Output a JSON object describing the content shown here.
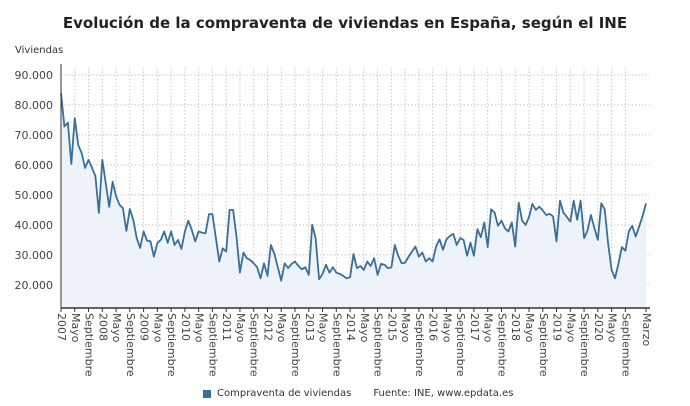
{
  "chart_data": {
    "type": "area",
    "title": "Evolución de la compraventa de viviendas en España, según el INE",
    "ylabel": "Viviendas",
    "xlabel": "",
    "x_start": "2007-01",
    "x_end": "2021-03",
    "frequency": "monthly",
    "ylim": [
      12300,
      92300
    ],
    "yticks": [
      20000,
      30000,
      40000,
      50000,
      60000,
      70000,
      80000,
      90000
    ],
    "ytick_labels": [
      "20.000",
      "30.000",
      "40.000",
      "50.000",
      "60.000",
      "70.000",
      "80.000",
      "90.000"
    ],
    "xtick_labels": [
      "2007",
      "Mayo",
      "Septiembre",
      "2008",
      "Mayo",
      "Septiembre",
      "2009",
      "Mayo",
      "Septiembre",
      "2010",
      "Mayo",
      "Septiembre",
      "2011",
      "Mayo",
      "Septiembre",
      "2012",
      "Mayo",
      "Septiembre",
      "2013",
      "Mayo",
      "Septiembre",
      "2014",
      "Mayo",
      "Septiembre",
      "2015",
      "Mayo",
      "Septiembre",
      "2016",
      "Mayo",
      "Septiembre",
      "2017",
      "Mayo",
      "Septiembre",
      "2018",
      "Mayo",
      "Septiembre",
      "2019",
      "Mayo",
      "Septiembre",
      "2020",
      "Mayo",
      "Septiembre",
      "Marzo"
    ],
    "grid": true,
    "legend_position": "bottom",
    "series": [
      {
        "name": "Compraventa de viviendas",
        "color": "#3a6f9a",
        "fill": "#eef3f9",
        "values": [
          83900,
          72800,
          74100,
          60300,
          75600,
          66700,
          64000,
          59000,
          61700,
          59000,
          56300,
          44000,
          61700,
          54000,
          46000,
          54400,
          49500,
          46700,
          45600,
          38000,
          45300,
          41700,
          35600,
          32300,
          37800,
          34800,
          34500,
          29400,
          34000,
          35000,
          37800,
          34000,
          37800,
          33300,
          35000,
          32000,
          37800,
          41400,
          38300,
          34500,
          37800,
          37400,
          37200,
          43600,
          43600,
          35600,
          27800,
          32200,
          31100,
          45000,
          45000,
          36100,
          24100,
          30800,
          28900,
          28300,
          27200,
          25900,
          22200,
          27200,
          23000,
          33300,
          30300,
          25900,
          21400,
          27200,
          25600,
          27000,
          27800,
          26300,
          25200,
          25900,
          23300,
          40000,
          35600,
          21900,
          23600,
          26700,
          24100,
          25900,
          24100,
          23700,
          23000,
          22200,
          22600,
          30300,
          25600,
          26300,
          25000,
          27800,
          26300,
          28900,
          23300,
          27000,
          26700,
          25600,
          25900,
          33300,
          29700,
          27200,
          27400,
          29400,
          31100,
          32800,
          29400,
          30800,
          27800,
          28900,
          27800,
          32800,
          35200,
          31700,
          35200,
          36300,
          37000,
          33300,
          35600,
          35000,
          29700,
          34100,
          29700,
          38600,
          35900,
          40800,
          32600,
          45200,
          44100,
          39700,
          41400,
          38900,
          37800,
          40800,
          32800,
          47400,
          41400,
          40000,
          42600,
          47000,
          45000,
          46100,
          44800,
          43300,
          43700,
          42800,
          34500,
          48100,
          44100,
          42600,
          41100,
          48100,
          41700,
          48100,
          35600,
          38100,
          43300,
          38900,
          35000,
          47200,
          45200,
          33900,
          25000,
          22200,
          27200,
          32600,
          31400,
          37800,
          39700,
          36100,
          39400,
          43000,
          47200
        ]
      }
    ]
  },
  "legend": {
    "series_label": "Compraventa de viviendas",
    "source": "Fuente: INE, www.epdata.es"
  }
}
